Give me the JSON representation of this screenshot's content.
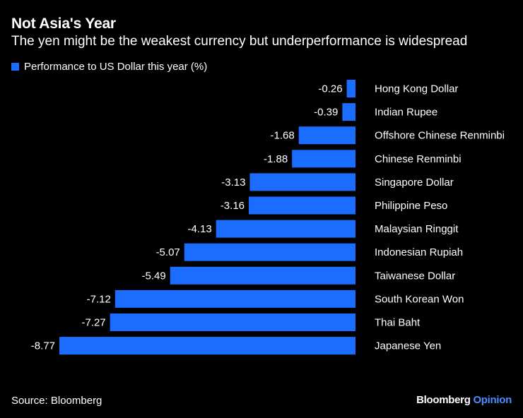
{
  "title": "Not Asia's Year",
  "subtitle": "The yen might be the weakest currency but underperformance is widespread",
  "source": "Source: Bloomberg",
  "brand": {
    "name": "Bloomberg",
    "suffix": "Opinion"
  },
  "colors": {
    "background": "#000000",
    "bar": "#1a6dff",
    "text": "#ffffff",
    "brand_accent": "#4d8dff"
  },
  "chart_data": {
    "type": "bar",
    "orientation": "horizontal",
    "legend": [
      {
        "name": "Performance to US Dollar this year (%)"
      }
    ],
    "grid": false,
    "xlim": [
      -8.77,
      0
    ],
    "categories": [
      "Hong Kong Dollar",
      "Indian Rupee",
      "Offshore Chinese Renminbi",
      "Chinese Renminbi",
      "Singapore Dollar",
      "Philippine Peso",
      "Malaysian Ringgit",
      "Indonesian Rupiah",
      "Taiwanese Dollar",
      "South Korean Won",
      "Thai Baht",
      "Japanese Yen"
    ],
    "series": [
      {
        "name": "Performance to US Dollar this year (%)",
        "values": [
          -0.26,
          -0.39,
          -1.68,
          -1.88,
          -3.13,
          -3.16,
          -4.13,
          -5.07,
          -5.49,
          -7.12,
          -7.27,
          -8.77
        ],
        "labels": [
          "-0.26",
          "-0.39",
          "-1.68",
          "-1.88",
          "-3.13",
          "-3.16",
          "-4.13",
          "-5.07",
          "-5.49",
          "-7.12",
          "-7.27",
          "-8.77"
        ]
      }
    ]
  }
}
